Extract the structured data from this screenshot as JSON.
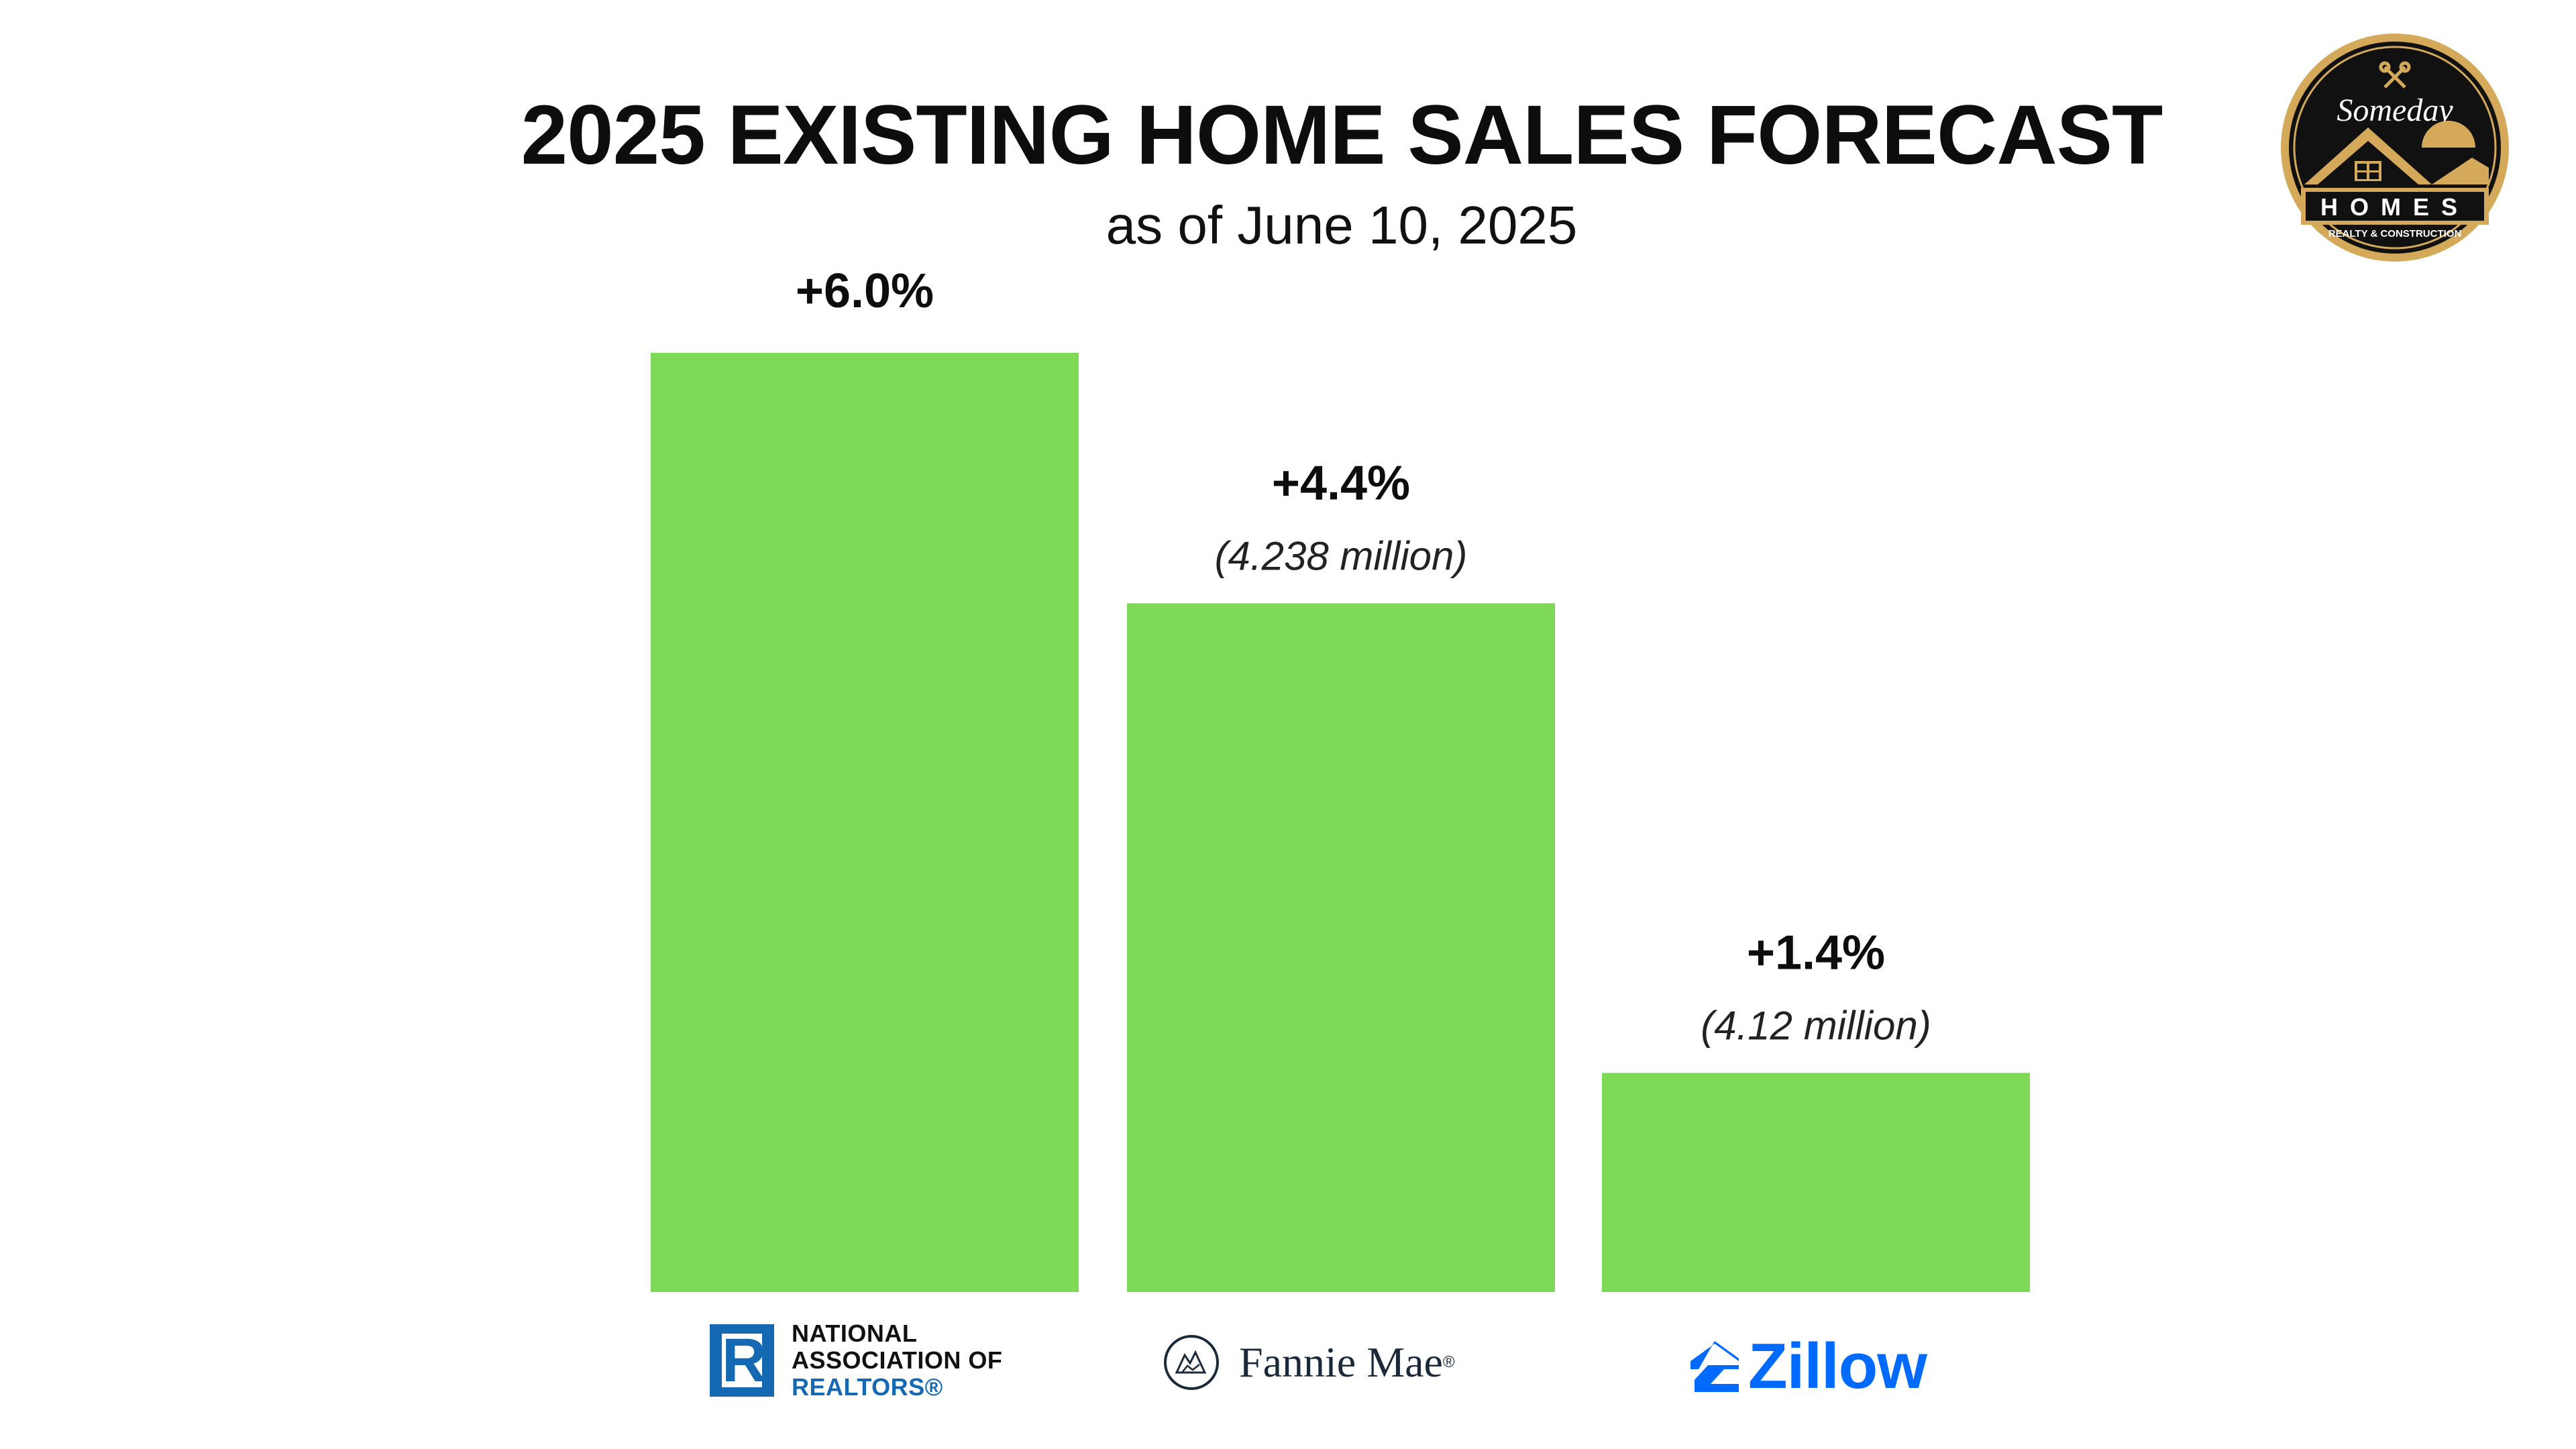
{
  "title": "2025 EXISTING HOME SALES FORECAST",
  "subtitle": "as of June 10, 2025",
  "chart_data": {
    "type": "bar",
    "title": "2025 EXISTING HOME SALES FORECAST",
    "subtitle": "as of June 10, 2025",
    "categories": [
      "National Association of Realtors",
      "Fannie Mae",
      "Zillow"
    ],
    "values": [
      6.0,
      4.4,
      1.4
    ],
    "value_labels": [
      "+6.0%",
      "+4.4%",
      "+1.4%"
    ],
    "sub_labels": [
      "",
      "(4.238 million)",
      "(4.12 million)"
    ],
    "unit": "% change in existing home sales",
    "xlabel": "",
    "ylabel": "",
    "ylim": [
      0,
      6.0
    ],
    "grid": false,
    "bar_color": "#7ed957"
  },
  "sources": {
    "nar": {
      "line1": "NATIONAL",
      "line2": "ASSOCIATION OF",
      "line3": "REALTORS®",
      "mark_letter": "R"
    },
    "fannie_mae": {
      "name": "Fannie Mae",
      "trademark": "®"
    },
    "zillow": {
      "name": "Zillow"
    }
  },
  "brand": {
    "name_script": "Someday",
    "name_main": "HOMES",
    "tagline": "REALTY & CONSTRUCTION",
    "gold": "#d4a95a"
  },
  "colors": {
    "bar": "#7ed957",
    "nar_blue": "#1569b3",
    "fannie_navy": "#1b2a3a",
    "zillow_blue": "#006aff"
  }
}
